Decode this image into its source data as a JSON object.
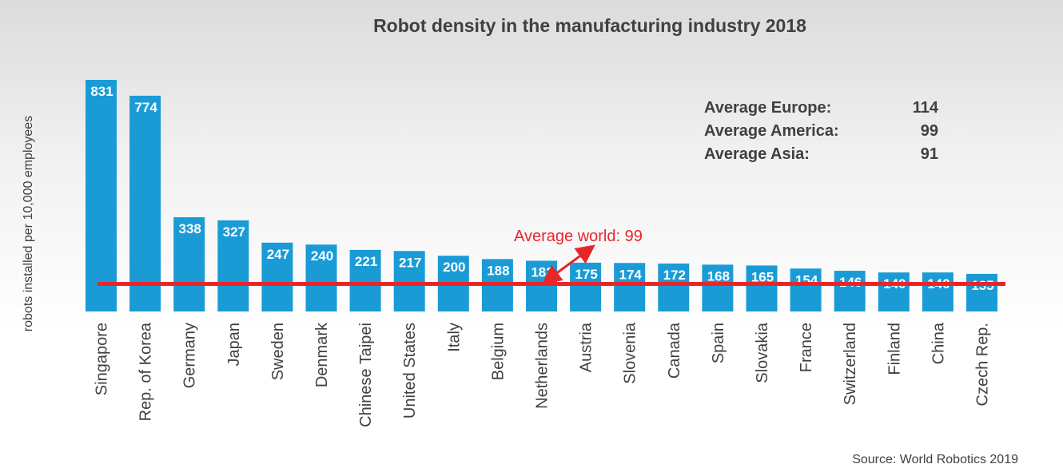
{
  "chart_data": {
    "type": "bar",
    "title": "Robot density in the manufacturing industry 2018",
    "xlabel": "",
    "ylabel": "robots installed per 10,000 employees",
    "ylim": [
      0,
      831
    ],
    "grid": false,
    "categories": [
      "Singapore",
      "Rep. of Korea",
      "Germany",
      "Japan",
      "Sweden",
      "Denmark",
      "Chinese Taipei",
      "United States",
      "Italy",
      "Belgium",
      "Netherlands",
      "Austria",
      "Slovenia",
      "Canada",
      "Spain",
      "Slovakia",
      "France",
      "Switzerland",
      "Finland",
      "China",
      "Czech Rep."
    ],
    "values": [
      831,
      774,
      338,
      327,
      247,
      240,
      221,
      217,
      200,
      188,
      182,
      175,
      174,
      172,
      168,
      165,
      154,
      146,
      140,
      140,
      135
    ],
    "reference_line": {
      "label": "Average world: 99",
      "value": 99
    },
    "annotations": [
      {
        "label": "Average Europe:",
        "value": "114"
      },
      {
        "label": "Average America:",
        "value": "99"
      },
      {
        "label": "Average Asia:",
        "value": "91"
      }
    ],
    "source": "Source: World Robotics 2019",
    "colors": {
      "bar": "#1a9bd6",
      "line": "#e8262a",
      "text": "#404040"
    }
  }
}
